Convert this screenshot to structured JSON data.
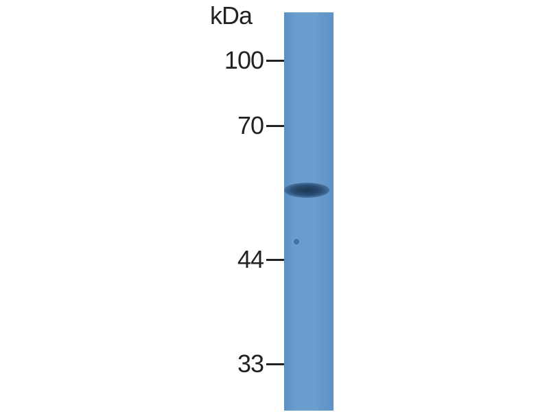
{
  "unit_label": "kDa",
  "markers": [
    {
      "label": "100"
    },
    {
      "label": "70"
    },
    {
      "label": "44"
    },
    {
      "label": "33"
    }
  ],
  "colors": {
    "membrane": "#6a9ccd",
    "band": "#1d3550",
    "text": "#222222"
  }
}
